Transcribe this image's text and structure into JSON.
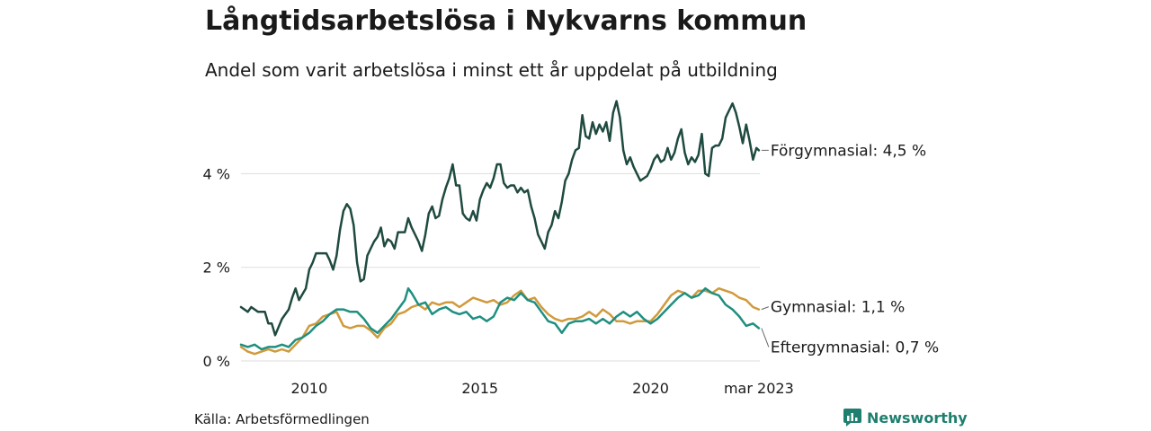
{
  "title": "Långtidsarbetslösa i Nykvarns kommun",
  "subtitle": "Andel som varit arbetslösa i minst ett år uppdelat på utbildning",
  "source": "Källa: Arbetsförmedlingen",
  "brand": "Newsworthy",
  "colors": {
    "forgymnasial": "#1f4a40",
    "gymnasial": "#d09a3c",
    "eftergymnasial": "#1e8f80",
    "grid": "#dddddd",
    "brand": "#1e7f6e"
  },
  "chart_data": {
    "type": "line",
    "title": "Långtidsarbetslösa i Nykvarns kommun",
    "subtitle": "Andel som varit arbetslösa i minst ett år uppdelat på utbildning",
    "xlabel": "",
    "ylabel": "",
    "x_start": "2008-01",
    "x_end": "2023-03",
    "xlim": [
      2008.0,
      2023.2
    ],
    "ylim": [
      0,
      5.6
    ],
    "yticks": [
      0,
      2,
      4
    ],
    "ytick_labels": [
      "0 %",
      "2 %",
      "4 %"
    ],
    "xticks": [
      2010,
      2015,
      2020,
      2023.17
    ],
    "xtick_labels": [
      "2010",
      "2015",
      "2020",
      "mar 2023"
    ],
    "grid": true,
    "series": [
      {
        "name": "Förgymnasial",
        "end_label": "Förgymnasial: 4,5 %",
        "points": [
          [
            2008.0,
            1.15
          ],
          [
            2008.2,
            1.05
          ],
          [
            2008.3,
            1.15
          ],
          [
            2008.5,
            1.05
          ],
          [
            2008.7,
            1.05
          ],
          [
            2008.8,
            0.8
          ],
          [
            2008.9,
            0.8
          ],
          [
            2009.0,
            0.55
          ],
          [
            2009.2,
            0.9
          ],
          [
            2009.4,
            1.1
          ],
          [
            2009.5,
            1.35
          ],
          [
            2009.6,
            1.55
          ],
          [
            2009.7,
            1.3
          ],
          [
            2009.9,
            1.55
          ],
          [
            2010.0,
            1.95
          ],
          [
            2010.1,
            2.1
          ],
          [
            2010.2,
            2.3
          ],
          [
            2010.4,
            2.3
          ],
          [
            2010.5,
            2.3
          ],
          [
            2010.6,
            2.15
          ],
          [
            2010.7,
            1.95
          ],
          [
            2010.8,
            2.25
          ],
          [
            2010.9,
            2.8
          ],
          [
            2011.0,
            3.2
          ],
          [
            2011.1,
            3.35
          ],
          [
            2011.2,
            3.25
          ],
          [
            2011.3,
            2.9
          ],
          [
            2011.4,
            2.1
          ],
          [
            2011.5,
            1.7
          ],
          [
            2011.6,
            1.75
          ],
          [
            2011.7,
            2.25
          ],
          [
            2011.8,
            2.4
          ],
          [
            2011.9,
            2.55
          ],
          [
            2012.0,
            2.65
          ],
          [
            2012.1,
            2.85
          ],
          [
            2012.2,
            2.45
          ],
          [
            2012.3,
            2.6
          ],
          [
            2012.4,
            2.55
          ],
          [
            2012.5,
            2.4
          ],
          [
            2012.6,
            2.75
          ],
          [
            2012.7,
            2.75
          ],
          [
            2012.8,
            2.75
          ],
          [
            2012.9,
            3.05
          ],
          [
            2013.0,
            2.85
          ],
          [
            2013.2,
            2.55
          ],
          [
            2013.3,
            2.35
          ],
          [
            2013.4,
            2.7
          ],
          [
            2013.5,
            3.15
          ],
          [
            2013.6,
            3.3
          ],
          [
            2013.7,
            3.05
          ],
          [
            2013.8,
            3.1
          ],
          [
            2013.9,
            3.45
          ],
          [
            2014.0,
            3.7
          ],
          [
            2014.1,
            3.9
          ],
          [
            2014.2,
            4.2
          ],
          [
            2014.3,
            3.75
          ],
          [
            2014.4,
            3.75
          ],
          [
            2014.5,
            3.15
          ],
          [
            2014.6,
            3.05
          ],
          [
            2014.7,
            3.0
          ],
          [
            2014.8,
            3.2
          ],
          [
            2014.9,
            3.0
          ],
          [
            2015.0,
            3.45
          ],
          [
            2015.1,
            3.65
          ],
          [
            2015.2,
            3.8
          ],
          [
            2015.3,
            3.7
          ],
          [
            2015.4,
            3.9
          ],
          [
            2015.5,
            4.2
          ],
          [
            2015.6,
            4.2
          ],
          [
            2015.7,
            3.8
          ],
          [
            2015.8,
            3.7
          ],
          [
            2015.9,
            3.75
          ],
          [
            2016.0,
            3.75
          ],
          [
            2016.1,
            3.6
          ],
          [
            2016.2,
            3.7
          ],
          [
            2016.3,
            3.6
          ],
          [
            2016.4,
            3.65
          ],
          [
            2016.5,
            3.3
          ],
          [
            2016.6,
            3.05
          ],
          [
            2016.7,
            2.7
          ],
          [
            2016.8,
            2.55
          ],
          [
            2016.9,
            2.4
          ],
          [
            2017.0,
            2.75
          ],
          [
            2017.1,
            2.9
          ],
          [
            2017.2,
            3.2
          ],
          [
            2017.3,
            3.05
          ],
          [
            2017.4,
            3.4
          ],
          [
            2017.5,
            3.85
          ],
          [
            2017.6,
            4.0
          ],
          [
            2017.7,
            4.3
          ],
          [
            2017.8,
            4.5
          ],
          [
            2017.9,
            4.55
          ],
          [
            2018.0,
            5.25
          ],
          [
            2018.1,
            4.8
          ],
          [
            2018.2,
            4.75
          ],
          [
            2018.3,
            5.1
          ],
          [
            2018.4,
            4.85
          ],
          [
            2018.5,
            5.05
          ],
          [
            2018.6,
            4.9
          ],
          [
            2018.7,
            5.1
          ],
          [
            2018.8,
            4.7
          ],
          [
            2018.9,
            5.3
          ],
          [
            2019.0,
            5.55
          ],
          [
            2019.1,
            5.2
          ],
          [
            2019.2,
            4.5
          ],
          [
            2019.3,
            4.2
          ],
          [
            2019.4,
            4.35
          ],
          [
            2019.5,
            4.15
          ],
          [
            2019.6,
            4.0
          ],
          [
            2019.7,
            3.85
          ],
          [
            2019.8,
            3.9
          ],
          [
            2019.9,
            3.95
          ],
          [
            2020.0,
            4.1
          ],
          [
            2020.1,
            4.3
          ],
          [
            2020.2,
            4.4
          ],
          [
            2020.3,
            4.25
          ],
          [
            2020.4,
            4.3
          ],
          [
            2020.5,
            4.55
          ],
          [
            2020.6,
            4.3
          ],
          [
            2020.7,
            4.45
          ],
          [
            2020.8,
            4.75
          ],
          [
            2020.9,
            4.95
          ],
          [
            2021.0,
            4.45
          ],
          [
            2021.1,
            4.2
          ],
          [
            2021.2,
            4.35
          ],
          [
            2021.3,
            4.25
          ],
          [
            2021.4,
            4.4
          ],
          [
            2021.5,
            4.85
          ],
          [
            2021.6,
            4.0
          ],
          [
            2021.7,
            3.95
          ],
          [
            2021.8,
            4.55
          ],
          [
            2021.9,
            4.6
          ],
          [
            2022.0,
            4.6
          ],
          [
            2022.1,
            4.75
          ],
          [
            2022.2,
            5.2
          ],
          [
            2022.3,
            5.35
          ],
          [
            2022.4,
            5.5
          ],
          [
            2022.5,
            5.3
          ],
          [
            2022.6,
            5.0
          ],
          [
            2022.7,
            4.65
          ],
          [
            2022.8,
            5.05
          ],
          [
            2022.9,
            4.7
          ],
          [
            2023.0,
            4.3
          ],
          [
            2023.1,
            4.55
          ],
          [
            2023.17,
            4.5
          ]
        ]
      },
      {
        "name": "Gymnasial",
        "end_label": "Gymnasial: 1,1 %",
        "points": [
          [
            2008.0,
            0.3
          ],
          [
            2008.2,
            0.2
          ],
          [
            2008.4,
            0.15
          ],
          [
            2008.6,
            0.2
          ],
          [
            2008.8,
            0.25
          ],
          [
            2009.0,
            0.2
          ],
          [
            2009.2,
            0.25
          ],
          [
            2009.4,
            0.2
          ],
          [
            2009.6,
            0.35
          ],
          [
            2009.8,
            0.5
          ],
          [
            2010.0,
            0.75
          ],
          [
            2010.2,
            0.8
          ],
          [
            2010.4,
            0.95
          ],
          [
            2010.6,
            1.0
          ],
          [
            2010.8,
            1.05
          ],
          [
            2011.0,
            0.75
          ],
          [
            2011.2,
            0.7
          ],
          [
            2011.4,
            0.75
          ],
          [
            2011.6,
            0.75
          ],
          [
            2011.8,
            0.65
          ],
          [
            2012.0,
            0.5
          ],
          [
            2012.2,
            0.7
          ],
          [
            2012.4,
            0.8
          ],
          [
            2012.6,
            1.0
          ],
          [
            2012.8,
            1.05
          ],
          [
            2013.0,
            1.15
          ],
          [
            2013.2,
            1.2
          ],
          [
            2013.4,
            1.1
          ],
          [
            2013.6,
            1.25
          ],
          [
            2013.8,
            1.2
          ],
          [
            2014.0,
            1.25
          ],
          [
            2014.2,
            1.25
          ],
          [
            2014.4,
            1.15
          ],
          [
            2014.6,
            1.25
          ],
          [
            2014.8,
            1.35
          ],
          [
            2015.0,
            1.3
          ],
          [
            2015.2,
            1.25
          ],
          [
            2015.4,
            1.3
          ],
          [
            2015.6,
            1.2
          ],
          [
            2015.8,
            1.25
          ],
          [
            2016.0,
            1.4
          ],
          [
            2016.2,
            1.5
          ],
          [
            2016.4,
            1.3
          ],
          [
            2016.6,
            1.35
          ],
          [
            2016.8,
            1.15
          ],
          [
            2017.0,
            1.0
          ],
          [
            2017.2,
            0.9
          ],
          [
            2017.4,
            0.85
          ],
          [
            2017.6,
            0.9
          ],
          [
            2017.8,
            0.9
          ],
          [
            2018.0,
            0.95
          ],
          [
            2018.2,
            1.05
          ],
          [
            2018.4,
            0.95
          ],
          [
            2018.6,
            1.1
          ],
          [
            2018.8,
            1.0
          ],
          [
            2019.0,
            0.85
          ],
          [
            2019.2,
            0.85
          ],
          [
            2019.4,
            0.8
          ],
          [
            2019.6,
            0.85
          ],
          [
            2019.8,
            0.85
          ],
          [
            2020.0,
            0.85
          ],
          [
            2020.2,
            1.0
          ],
          [
            2020.4,
            1.2
          ],
          [
            2020.6,
            1.4
          ],
          [
            2020.8,
            1.5
          ],
          [
            2021.0,
            1.45
          ],
          [
            2021.2,
            1.35
          ],
          [
            2021.4,
            1.5
          ],
          [
            2021.6,
            1.5
          ],
          [
            2021.8,
            1.45
          ],
          [
            2022.0,
            1.55
          ],
          [
            2022.2,
            1.5
          ],
          [
            2022.4,
            1.45
          ],
          [
            2022.6,
            1.35
          ],
          [
            2022.8,
            1.3
          ],
          [
            2023.0,
            1.15
          ],
          [
            2023.17,
            1.1
          ]
        ]
      },
      {
        "name": "Eftergymnasial",
        "end_label": "Eftergymnasial: 0,7 %",
        "points": [
          [
            2008.0,
            0.35
          ],
          [
            2008.2,
            0.3
          ],
          [
            2008.4,
            0.35
          ],
          [
            2008.6,
            0.25
          ],
          [
            2008.8,
            0.3
          ],
          [
            2009.0,
            0.3
          ],
          [
            2009.2,
            0.35
          ],
          [
            2009.4,
            0.3
          ],
          [
            2009.6,
            0.45
          ],
          [
            2009.8,
            0.5
          ],
          [
            2010.0,
            0.6
          ],
          [
            2010.2,
            0.75
          ],
          [
            2010.4,
            0.85
          ],
          [
            2010.6,
            1.0
          ],
          [
            2010.8,
            1.1
          ],
          [
            2011.0,
            1.1
          ],
          [
            2011.2,
            1.05
          ],
          [
            2011.4,
            1.05
          ],
          [
            2011.6,
            0.9
          ],
          [
            2011.8,
            0.7
          ],
          [
            2012.0,
            0.6
          ],
          [
            2012.2,
            0.75
          ],
          [
            2012.4,
            0.9
          ],
          [
            2012.6,
            1.1
          ],
          [
            2012.8,
            1.3
          ],
          [
            2012.9,
            1.55
          ],
          [
            2013.0,
            1.45
          ],
          [
            2013.2,
            1.2
          ],
          [
            2013.4,
            1.25
          ],
          [
            2013.6,
            1.0
          ],
          [
            2013.8,
            1.1
          ],
          [
            2014.0,
            1.15
          ],
          [
            2014.2,
            1.05
          ],
          [
            2014.4,
            1.0
          ],
          [
            2014.6,
            1.05
          ],
          [
            2014.8,
            0.9
          ],
          [
            2015.0,
            0.95
          ],
          [
            2015.2,
            0.85
          ],
          [
            2015.4,
            0.95
          ],
          [
            2015.6,
            1.25
          ],
          [
            2015.8,
            1.35
          ],
          [
            2016.0,
            1.3
          ],
          [
            2016.2,
            1.45
          ],
          [
            2016.4,
            1.3
          ],
          [
            2016.6,
            1.25
          ],
          [
            2016.8,
            1.05
          ],
          [
            2017.0,
            0.85
          ],
          [
            2017.2,
            0.8
          ],
          [
            2017.4,
            0.6
          ],
          [
            2017.6,
            0.8
          ],
          [
            2017.8,
            0.85
          ],
          [
            2018.0,
            0.85
          ],
          [
            2018.2,
            0.9
          ],
          [
            2018.4,
            0.8
          ],
          [
            2018.6,
            0.9
          ],
          [
            2018.8,
            0.8
          ],
          [
            2019.0,
            0.95
          ],
          [
            2019.2,
            1.05
          ],
          [
            2019.4,
            0.95
          ],
          [
            2019.6,
            1.05
          ],
          [
            2019.8,
            0.9
          ],
          [
            2020.0,
            0.8
          ],
          [
            2020.2,
            0.9
          ],
          [
            2020.4,
            1.05
          ],
          [
            2020.6,
            1.2
          ],
          [
            2020.8,
            1.35
          ],
          [
            2021.0,
            1.45
          ],
          [
            2021.2,
            1.35
          ],
          [
            2021.4,
            1.4
          ],
          [
            2021.6,
            1.55
          ],
          [
            2021.8,
            1.45
          ],
          [
            2022.0,
            1.4
          ],
          [
            2022.2,
            1.2
          ],
          [
            2022.4,
            1.1
          ],
          [
            2022.6,
            0.95
          ],
          [
            2022.8,
            0.75
          ],
          [
            2023.0,
            0.8
          ],
          [
            2023.17,
            0.7
          ]
        ]
      }
    ]
  }
}
